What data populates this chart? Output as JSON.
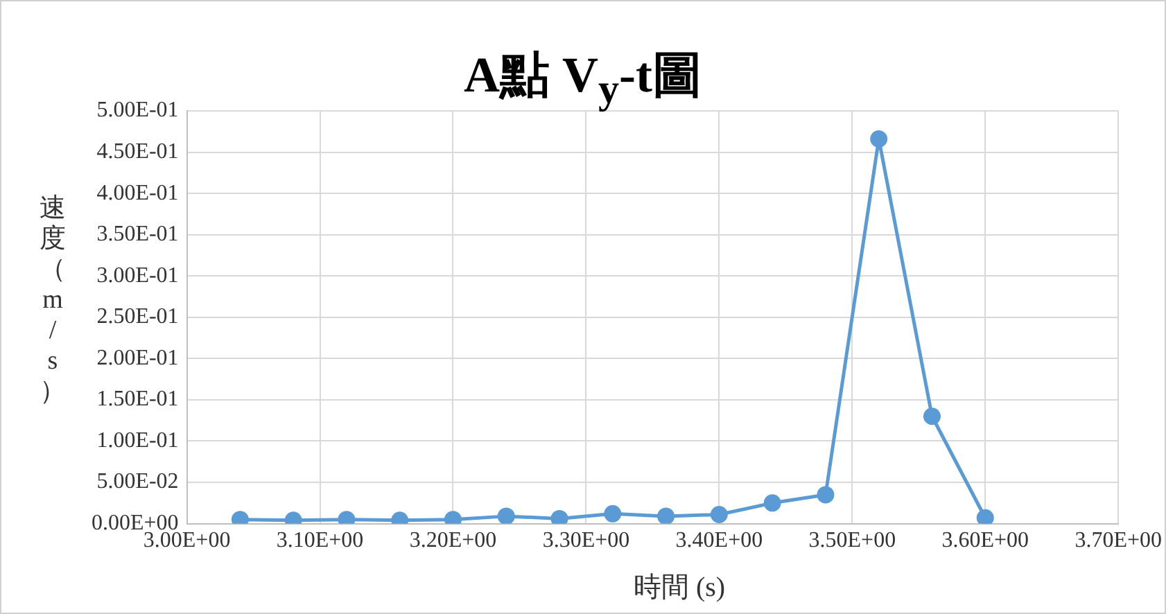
{
  "chart_data": {
    "type": "line",
    "title": "A點 V$_{y}$-t圖",
    "xlabel": "時間 (s)",
    "ylabel": "速度（m/s）",
    "x": [
      3.04,
      3.08,
      3.12,
      3.16,
      3.2,
      3.24,
      3.28,
      3.32,
      3.36,
      3.4,
      3.44,
      3.48,
      3.52,
      3.56,
      3.6
    ],
    "series": [
      {
        "color": "#5b9bd5",
        "values": [
          0.005,
          0.004,
          0.005,
          0.004,
          0.005,
          0.009,
          0.006,
          0.012,
          0.009,
          0.011,
          0.025,
          0.035,
          0.466,
          0.13,
          0.007
        ]
      }
    ],
    "xlim": [
      3.0,
      3.7
    ],
    "xticks": [
      {
        "value": 3.0,
        "label": "3.00E+00"
      },
      {
        "value": 3.1,
        "label": "3.10E+00"
      },
      {
        "value": 3.2,
        "label": "3.20E+00"
      },
      {
        "value": 3.3,
        "label": "3.30E+00"
      },
      {
        "value": 3.4,
        "label": "3.40E+00"
      },
      {
        "value": 3.5,
        "label": "3.50E+00"
      },
      {
        "value": 3.6,
        "label": "3.60E+00"
      },
      {
        "value": 3.7,
        "label": "3.70E+00"
      }
    ],
    "ylim": [
      0,
      0.5
    ],
    "yticks": [
      {
        "value": 0,
        "label": "0.00E+00"
      },
      {
        "value": 0.05,
        "label": "5.00E-02"
      },
      {
        "value": 0.1,
        "label": "1.00E-01"
      },
      {
        "value": 0.15,
        "label": "1.50E-01"
      },
      {
        "value": 0.2,
        "label": "2.00E-01"
      },
      {
        "value": 0.25,
        "label": "2.50E-01"
      },
      {
        "value": 0.3,
        "label": "3.00E-01"
      },
      {
        "value": 0.35,
        "label": "3.50E-01"
      },
      {
        "value": 0.4,
        "label": "4.00E-01"
      },
      {
        "value": 0.45,
        "label": "4.50E-01"
      },
      {
        "value": 0.5,
        "label": "5.00E-01"
      }
    ],
    "grid": true,
    "legend": false,
    "marker": "circle",
    "line_style": "solid"
  }
}
